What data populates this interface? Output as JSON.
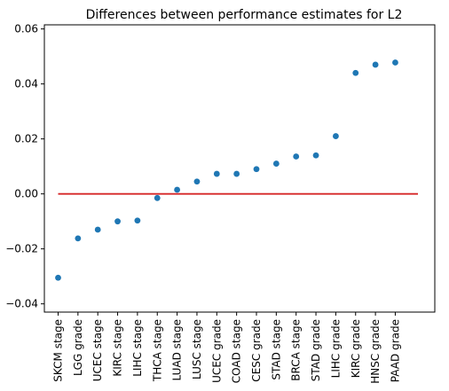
{
  "chart_data": {
    "type": "scatter",
    "title": "Differences between performance estimates for L2",
    "xlabel": "",
    "ylabel": "",
    "categories": [
      "SKCM stage",
      "LGG grade",
      "UCEC stage",
      "KIRC stage",
      "LIHC stage",
      "THCA stage",
      "LUAD stage",
      "LUSC stage",
      "UCEC grade",
      "COAD stage",
      "CESC grade",
      "STAD stage",
      "BRCA stage",
      "STAD grade",
      "LIHC grade",
      "KIRC grade",
      "HNSC grade",
      "PAAD grade"
    ],
    "values": [
      -0.0305,
      -0.0162,
      -0.013,
      -0.01,
      -0.0097,
      -0.0015,
      0.0015,
      0.0045,
      0.0073,
      0.0073,
      0.009,
      0.011,
      0.0136,
      0.014,
      0.021,
      0.044,
      0.047,
      0.0478
    ],
    "ylim": [
      -0.043,
      0.0615
    ],
    "yticks": [
      -0.04,
      -0.02,
      0.0,
      0.02,
      0.04,
      0.06
    ],
    "ytick_labels": [
      "−0.04",
      "−0.02",
      "0.00",
      "0.02",
      "0.04",
      "0.06"
    ],
    "reference_line": {
      "y": 0,
      "color": "#d62728"
    },
    "point_color": "#1f77b4",
    "grid": false,
    "legend": "none"
  }
}
